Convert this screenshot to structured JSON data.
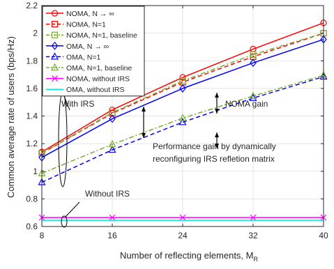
{
  "chart_data": {
    "type": "line",
    "title": "",
    "xlabel": "Number of reflecting elements, M",
    "xlabel_sub": "R",
    "ylabel": "Common average rate of users (bps/Hz)",
    "xlim": [
      8,
      40
    ],
    "ylim": [
      0.6,
      2.2
    ],
    "x_ticks": [
      8,
      16,
      24,
      32,
      40
    ],
    "y_ticks": [
      0.6,
      0.8,
      1,
      1.2,
      1.4,
      1.6,
      1.8,
      2,
      2.2
    ],
    "x_tick_labels": [
      "8",
      "16",
      "24",
      "32",
      "40"
    ],
    "y_tick_labels": [
      "0.6",
      "0.8",
      "1",
      "1.2",
      "1.4",
      "1.6",
      "1.8",
      "2",
      "2.2"
    ],
    "grid": true,
    "legend_position": "top-left",
    "series": [
      {
        "name": "NOMA, N → ∞",
        "color": "#ff0000",
        "dash": "solid",
        "marker": "circle",
        "x": [
          8,
          16,
          24,
          32,
          40
        ],
        "y": [
          1.14,
          1.445,
          1.68,
          1.885,
          2.075
        ]
      },
      {
        "name": "NOMA, N=1",
        "color": "#ff0000",
        "dash": "dashed",
        "marker": "square",
        "x": [
          8,
          16,
          24,
          32,
          40
        ],
        "y": [
          1.13,
          1.42,
          1.645,
          1.83,
          2.0
        ]
      },
      {
        "name": "NOMA, N=1, baseline",
        "color": "#77ac30",
        "dash": "dashdot",
        "marker": "square",
        "x": [
          8,
          16,
          24,
          32,
          40
        ],
        "y": [
          1.13,
          1.425,
          1.655,
          1.845,
          2.0
        ]
      },
      {
        "name": "OMA, N → ∞",
        "color": "#0000ff",
        "dash": "solid",
        "marker": "diamond",
        "x": [
          8,
          16,
          24,
          32,
          40
        ],
        "y": [
          1.1,
          1.38,
          1.6,
          1.785,
          1.955
        ]
      },
      {
        "name": "OMA, N=1",
        "color": "#0000ff",
        "dash": "dashed",
        "marker": "triangle",
        "x": [
          8,
          16,
          24,
          32,
          40
        ],
        "y": [
          0.92,
          1.155,
          1.355,
          1.53,
          1.685
        ]
      },
      {
        "name": "OMA, N=1, baseline",
        "color": "#77ac30",
        "dash": "dashdot",
        "marker": "triangle",
        "x": [
          8,
          16,
          24,
          32,
          40
        ],
        "y": [
          0.985,
          1.195,
          1.385,
          1.545,
          1.695
        ]
      },
      {
        "name": "NOMA, without IRS",
        "color": "#ff00ff",
        "dash": "solid",
        "marker": "x",
        "x": [
          8,
          16,
          24,
          32,
          40
        ],
        "y": [
          0.665,
          0.665,
          0.665,
          0.665,
          0.665
        ]
      },
      {
        "name": "OMA, without IRS",
        "color": "#00e5e5",
        "dash": "solid",
        "marker": "none",
        "x": [
          8,
          16,
          24,
          32,
          40
        ],
        "y": [
          0.645,
          0.645,
          0.645,
          0.645,
          0.645
        ]
      }
    ],
    "annotations": {
      "with_irs": "With IRS",
      "without_irs": "Without IRS",
      "noma_gain": "NOMA gain",
      "perf_gain_line1": "Performance gain by dynamically",
      "perf_gain_line2": "reconfiguring IRS refletion matrix"
    }
  }
}
